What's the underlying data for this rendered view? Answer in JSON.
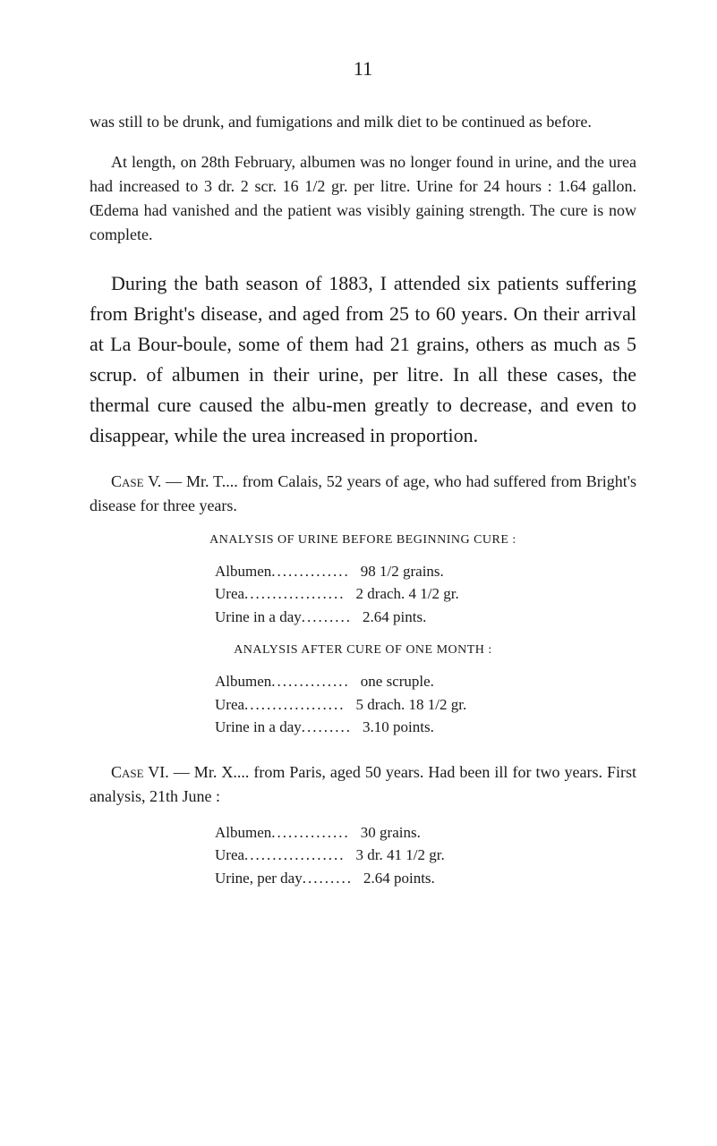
{
  "page_number": "11",
  "para1": "was still to be drunk, and fumigations and milk diet to be continued as before.",
  "para2": "At length, on 28th February, albumen was no longer found in urine, and the urea had increased to 3 dr. 2 scr. 16 1/2 gr. per litre. Urine for 24 hours : 1.64 gallon. Œdema had vanished and the patient was visibly gaining strength. The cure is now complete.",
  "para3": "During the bath season of 1883, I attended six patients suffering from Bright's disease, and aged from 25 to 60 years. On their arrival at La Bour-boule, some of them had 21 grains, others as much as 5 scrup. of albumen in their urine, per litre. In all these cases, the thermal cure caused the albu-men greatly to decrease, and even to disappear, while the urea increased in proportion.",
  "case5": {
    "heading_pre": "Case V.",
    "heading_rest": " — Mr. T.... from Calais, 52 years of age, who had suffered from Bright's disease for three years.",
    "analysis1_label": "ANALYSIS OF URINE BEFORE BEGINNING CURE :",
    "rows1": [
      {
        "label": "Albumen",
        "dots": "..............",
        "value": "98 1/2 grains."
      },
      {
        "label": "Urea",
        "dots": "..................",
        "value": "2 drach. 4 1/2 gr."
      },
      {
        "label": "Urine in a day",
        "dots": ".........",
        "value": "2.64 pints."
      }
    ],
    "analysis2_label": "ANALYSIS AFTER CURE OF ONE MONTH :",
    "rows2": [
      {
        "label": "Albumen",
        "dots": "..............",
        "value": "one scruple."
      },
      {
        "label": "Urea",
        "dots": "..................",
        "value": "5 drach. 18 1/2 gr."
      },
      {
        "label": "Urine in a day",
        "dots": ".........",
        "value": "3.10 points."
      }
    ]
  },
  "case6": {
    "heading_pre": "Case VI.",
    "heading_rest": " — Mr. X.... from Paris, aged 50 years. Had been ill for two years. First analysis, 21th June :",
    "rows": [
      {
        "label": "Albumen",
        "dots": "..............",
        "value": "30 grains."
      },
      {
        "label": "Urea",
        "dots": "..................",
        "value": "3 dr. 41 1/2 gr."
      },
      {
        "label": "Urine, per day",
        "dots": ".........",
        "value": "2.64 points."
      }
    ]
  }
}
